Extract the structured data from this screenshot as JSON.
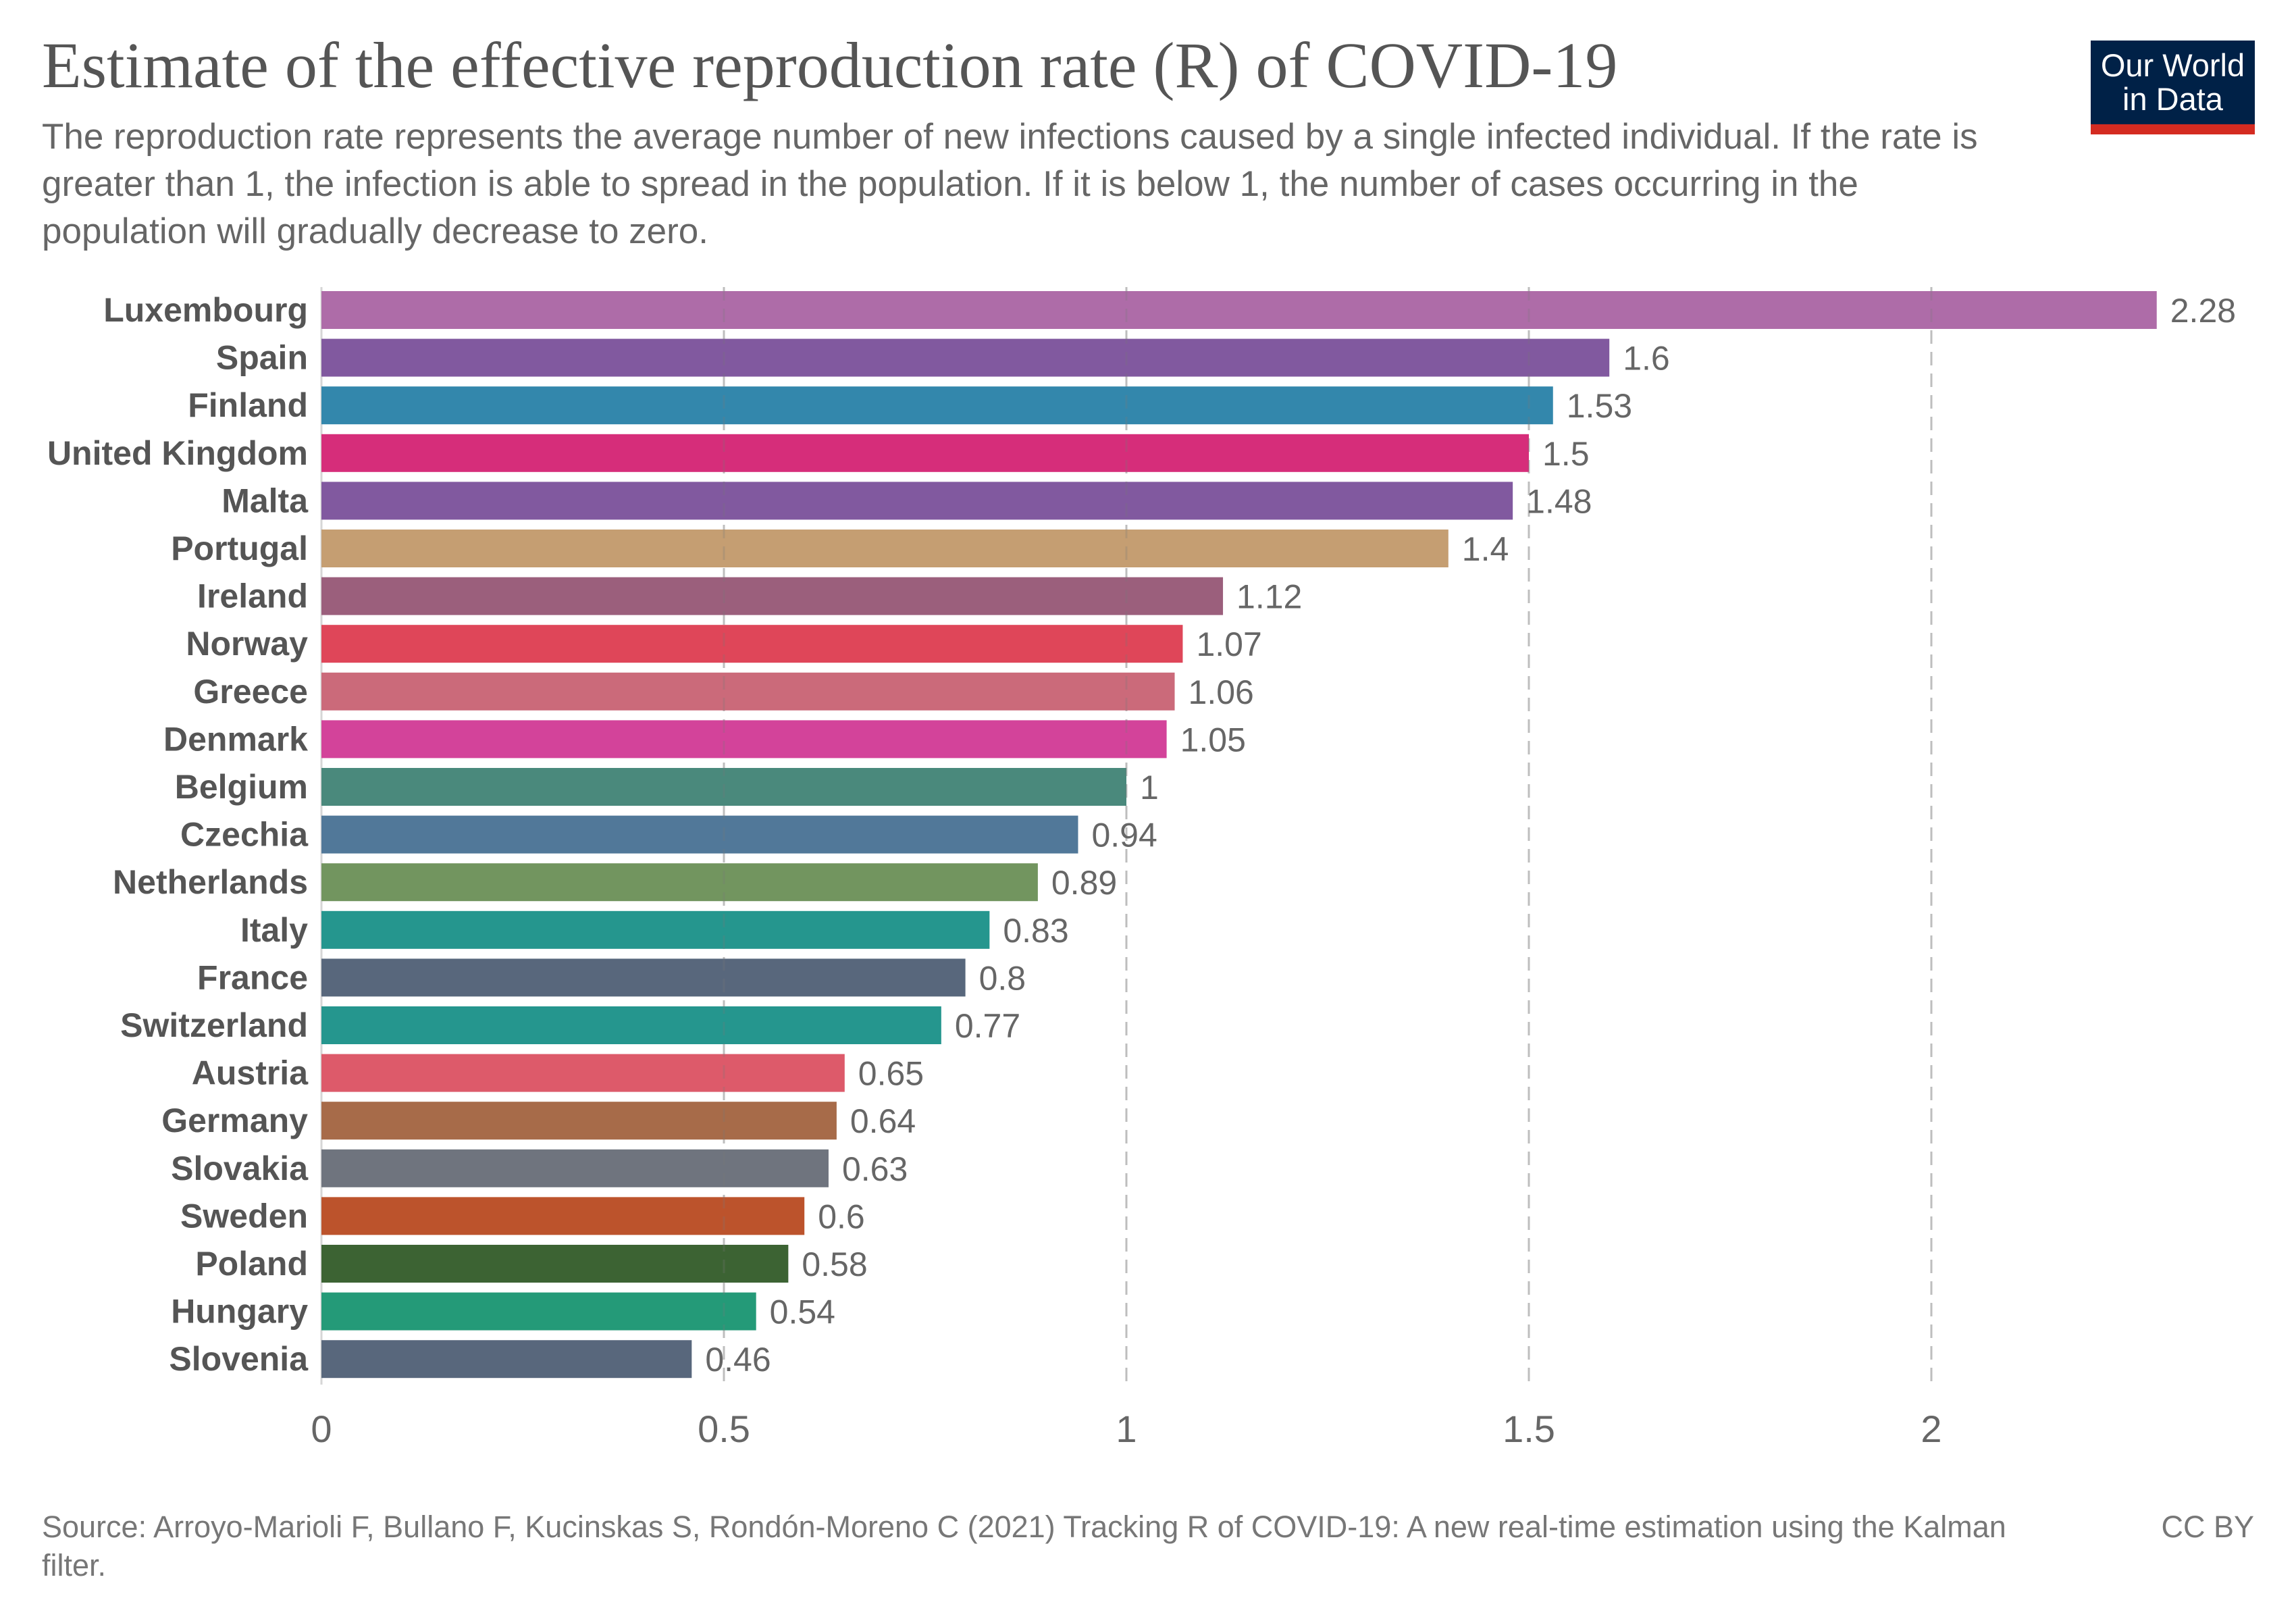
{
  "header": {
    "title": "Estimate of the effective reproduction rate (R) of COVID-19",
    "subtitle": "The reproduction rate represents the average number of new infections caused by a single infected individual. If the rate is greater than 1, the infection is able to spread in the population. If it is below 1, the number of cases occurring in the population will gradually decrease to zero.",
    "logo_line1": "Our World",
    "logo_line2": "in Data"
  },
  "footer": {
    "source": "Source: Arroyo-Marioli F, Bullano F, Kucinskas S, Rondón-Moreno C (2021) Tracking R of COVID-19: A new real-time estimation using the Kalman filter.",
    "license": "CC BY"
  },
  "colors": {
    "logo_bg": "#002147",
    "logo_accent": "#d42b21",
    "text": "#555555",
    "grid": "#dddddd"
  },
  "chart_data": {
    "type": "bar",
    "orientation": "horizontal",
    "title": "Estimate of the effective reproduction rate (R) of COVID-19",
    "xlabel": "",
    "ylabel": "",
    "xlim": [
      0,
      2.28
    ],
    "xticks": [
      0,
      0.5,
      1,
      1.5,
      2
    ],
    "xtick_labels": [
      "0",
      "0.5",
      "1",
      "1.5",
      "2"
    ],
    "grid": "vertical dashed",
    "categories": [
      "Luxembourg",
      "Spain",
      "Finland",
      "United Kingdom",
      "Malta",
      "Portugal",
      "Ireland",
      "Norway",
      "Greece",
      "Denmark",
      "Belgium",
      "Czechia",
      "Netherlands",
      "Italy",
      "France",
      "Switzerland",
      "Austria",
      "Germany",
      "Slovakia",
      "Sweden",
      "Poland",
      "Hungary",
      "Slovenia"
    ],
    "values": [
      2.28,
      1.6,
      1.53,
      1.5,
      1.48,
      1.4,
      1.12,
      1.07,
      1.06,
      1.05,
      1,
      0.94,
      0.89,
      0.83,
      0.8,
      0.77,
      0.65,
      0.64,
      0.63,
      0.6,
      0.58,
      0.54,
      0.46
    ],
    "value_labels": [
      "2.28",
      "1.6",
      "1.53",
      "1.5",
      "1.48",
      "1.4",
      "1.12",
      "1.07",
      "1.06",
      "1.05",
      "1",
      "0.94",
      "0.89",
      "0.83",
      "0.8",
      "0.77",
      "0.65",
      "0.64",
      "0.63",
      "0.6",
      "0.58",
      "0.54",
      "0.46"
    ],
    "bar_colors": [
      "#ae6ca8",
      "#81599f",
      "#3387ac",
      "#d62d7a",
      "#81599f",
      "#c59e72",
      "#9b5f7c",
      "#df4659",
      "#cb6a7a",
      "#d3439a",
      "#4a897c",
      "#517899",
      "#72955f",
      "#25968e",
      "#58677c",
      "#25968e",
      "#dd5a6a",
      "#a76b49",
      "#6f747e",
      "#bc532c",
      "#3c6333",
      "#249a78",
      "#58677c"
    ]
  }
}
